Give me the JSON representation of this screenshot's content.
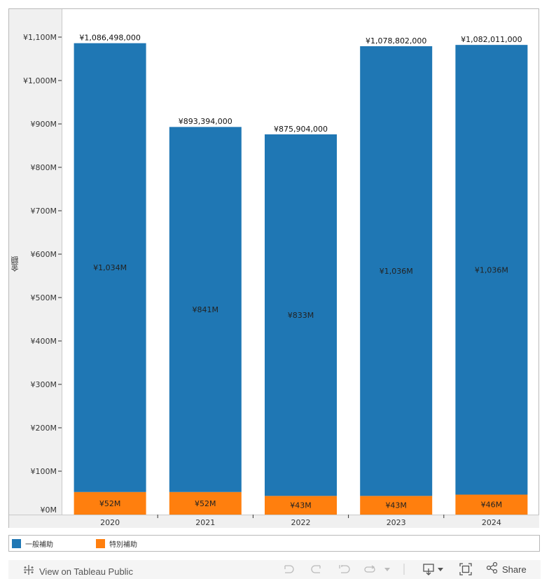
{
  "chart_data": {
    "type": "bar",
    "stacked": true,
    "title": "",
    "xlabel": "",
    "ylabel": "金額",
    "categories": [
      "2020",
      "2021",
      "2022",
      "2023",
      "2024"
    ],
    "series": [
      {
        "name": "特別補助",
        "color": "#ff7f0e",
        "values": [
          52,
          52,
          43,
          43,
          46
        ],
        "labels": [
          "¥52M",
          "¥52M",
          "¥43M",
          "¥43M",
          "¥46M"
        ]
      },
      {
        "name": "一般補助",
        "color": "#1f77b4",
        "values": [
          1034,
          841,
          833,
          1036,
          1036
        ],
        "labels": [
          "¥1,034M",
          "¥841M",
          "¥833M",
          "¥1,036M",
          "¥1,036M"
        ]
      }
    ],
    "totals": [
      1086.498,
      893.394,
      875.904,
      1078.802,
      1082.011
    ],
    "total_labels": [
      "¥1,086,498,000",
      "¥893,394,000",
      "¥875,904,000",
      "¥1,078,802,000",
      "¥1,082,011,000"
    ],
    "units": "million yen",
    "ylim": [
      0,
      1100
    ],
    "yticks": [
      0,
      100,
      200,
      300,
      400,
      500,
      600,
      700,
      800,
      900,
      1000,
      1100
    ],
    "ytick_labels": [
      "¥0M",
      "¥100M",
      "¥200M",
      "¥300M",
      "¥400M",
      "¥500M",
      "¥600M",
      "¥700M",
      "¥800M",
      "¥900M",
      "¥1,000M",
      "¥1,100M"
    ],
    "grid": false,
    "legend_position": "bottom"
  },
  "legend": {
    "items": [
      {
        "label": "一般補助",
        "color": "#1f77b4"
      },
      {
        "label": "特別補助",
        "color": "#ff7f0e"
      }
    ]
  },
  "toolbar": {
    "view_label": "View on Tableau Public",
    "share_label": "Share",
    "icons": [
      "undo-icon",
      "redo-icon",
      "revert-icon",
      "refresh-icon",
      "download-icon",
      "fullscreen-icon",
      "share-icon"
    ]
  }
}
